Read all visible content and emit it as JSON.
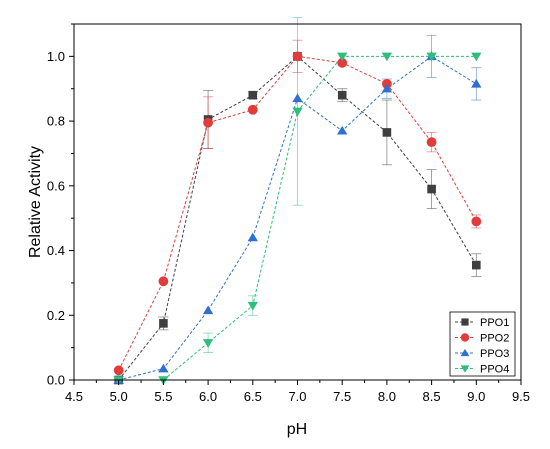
{
  "chart_data": {
    "type": "line",
    "xlabel": "pH",
    "ylabel": "Relative Activity",
    "xlim": [
      4.5,
      9.5
    ],
    "ylim": [
      0.0,
      1.1
    ],
    "xticks": [
      "4.5",
      "5.0",
      "5.5",
      "6.0",
      "6.5",
      "7.0",
      "7.5",
      "8.0",
      "8.5",
      "9.0",
      "9.5"
    ],
    "yticks": [
      "0.0",
      "0.2",
      "0.4",
      "0.6",
      "0.8",
      "1.0"
    ],
    "grid": false,
    "legend_position": "bottom-right",
    "x": [
      5.0,
      5.5,
      6.0,
      6.5,
      7.0,
      7.5,
      8.0,
      8.5,
      9.0
    ],
    "series": [
      {
        "name": "PPO1",
        "marker": "square",
        "color": "#3f3f3f",
        "values": [
          0.0,
          0.175,
          0.805,
          0.88,
          1.0,
          0.88,
          0.765,
          0.59,
          0.355
        ],
        "errors": [
          0.0,
          0.02,
          0.09,
          0.01,
          0.0,
          0.02,
          0.1,
          0.06,
          0.035
        ]
      },
      {
        "name": "PPO2",
        "marker": "circle",
        "color": "#e03c3c",
        "values": [
          0.03,
          0.305,
          0.795,
          0.835,
          1.0,
          0.98,
          0.915,
          0.735,
          0.49
        ],
        "errors": [
          0.0,
          0.0,
          0.08,
          0.0,
          0.05,
          0.0,
          0.0,
          0.03,
          0.02
        ]
      },
      {
        "name": "PPO3",
        "marker": "triangle-up",
        "color": "#2f6fd0",
        "values": [
          0.0,
          0.035,
          0.215,
          0.44,
          0.87,
          0.77,
          0.9,
          1.0,
          0.915
        ],
        "errors": [
          0.0,
          0.0,
          0.0,
          0.0,
          0.0,
          0.0,
          0.03,
          0.065,
          0.05
        ]
      },
      {
        "name": "PPO4",
        "marker": "triangle-down",
        "color": "#2ebd7a",
        "values": [
          0.0,
          0.0,
          0.115,
          0.23,
          0.83,
          1.0,
          1.0,
          1.0,
          1.0
        ],
        "errors": [
          0.0,
          0.0,
          0.03,
          0.03,
          0.29,
          0.0,
          0.0,
          0.0,
          0.0
        ]
      }
    ]
  }
}
